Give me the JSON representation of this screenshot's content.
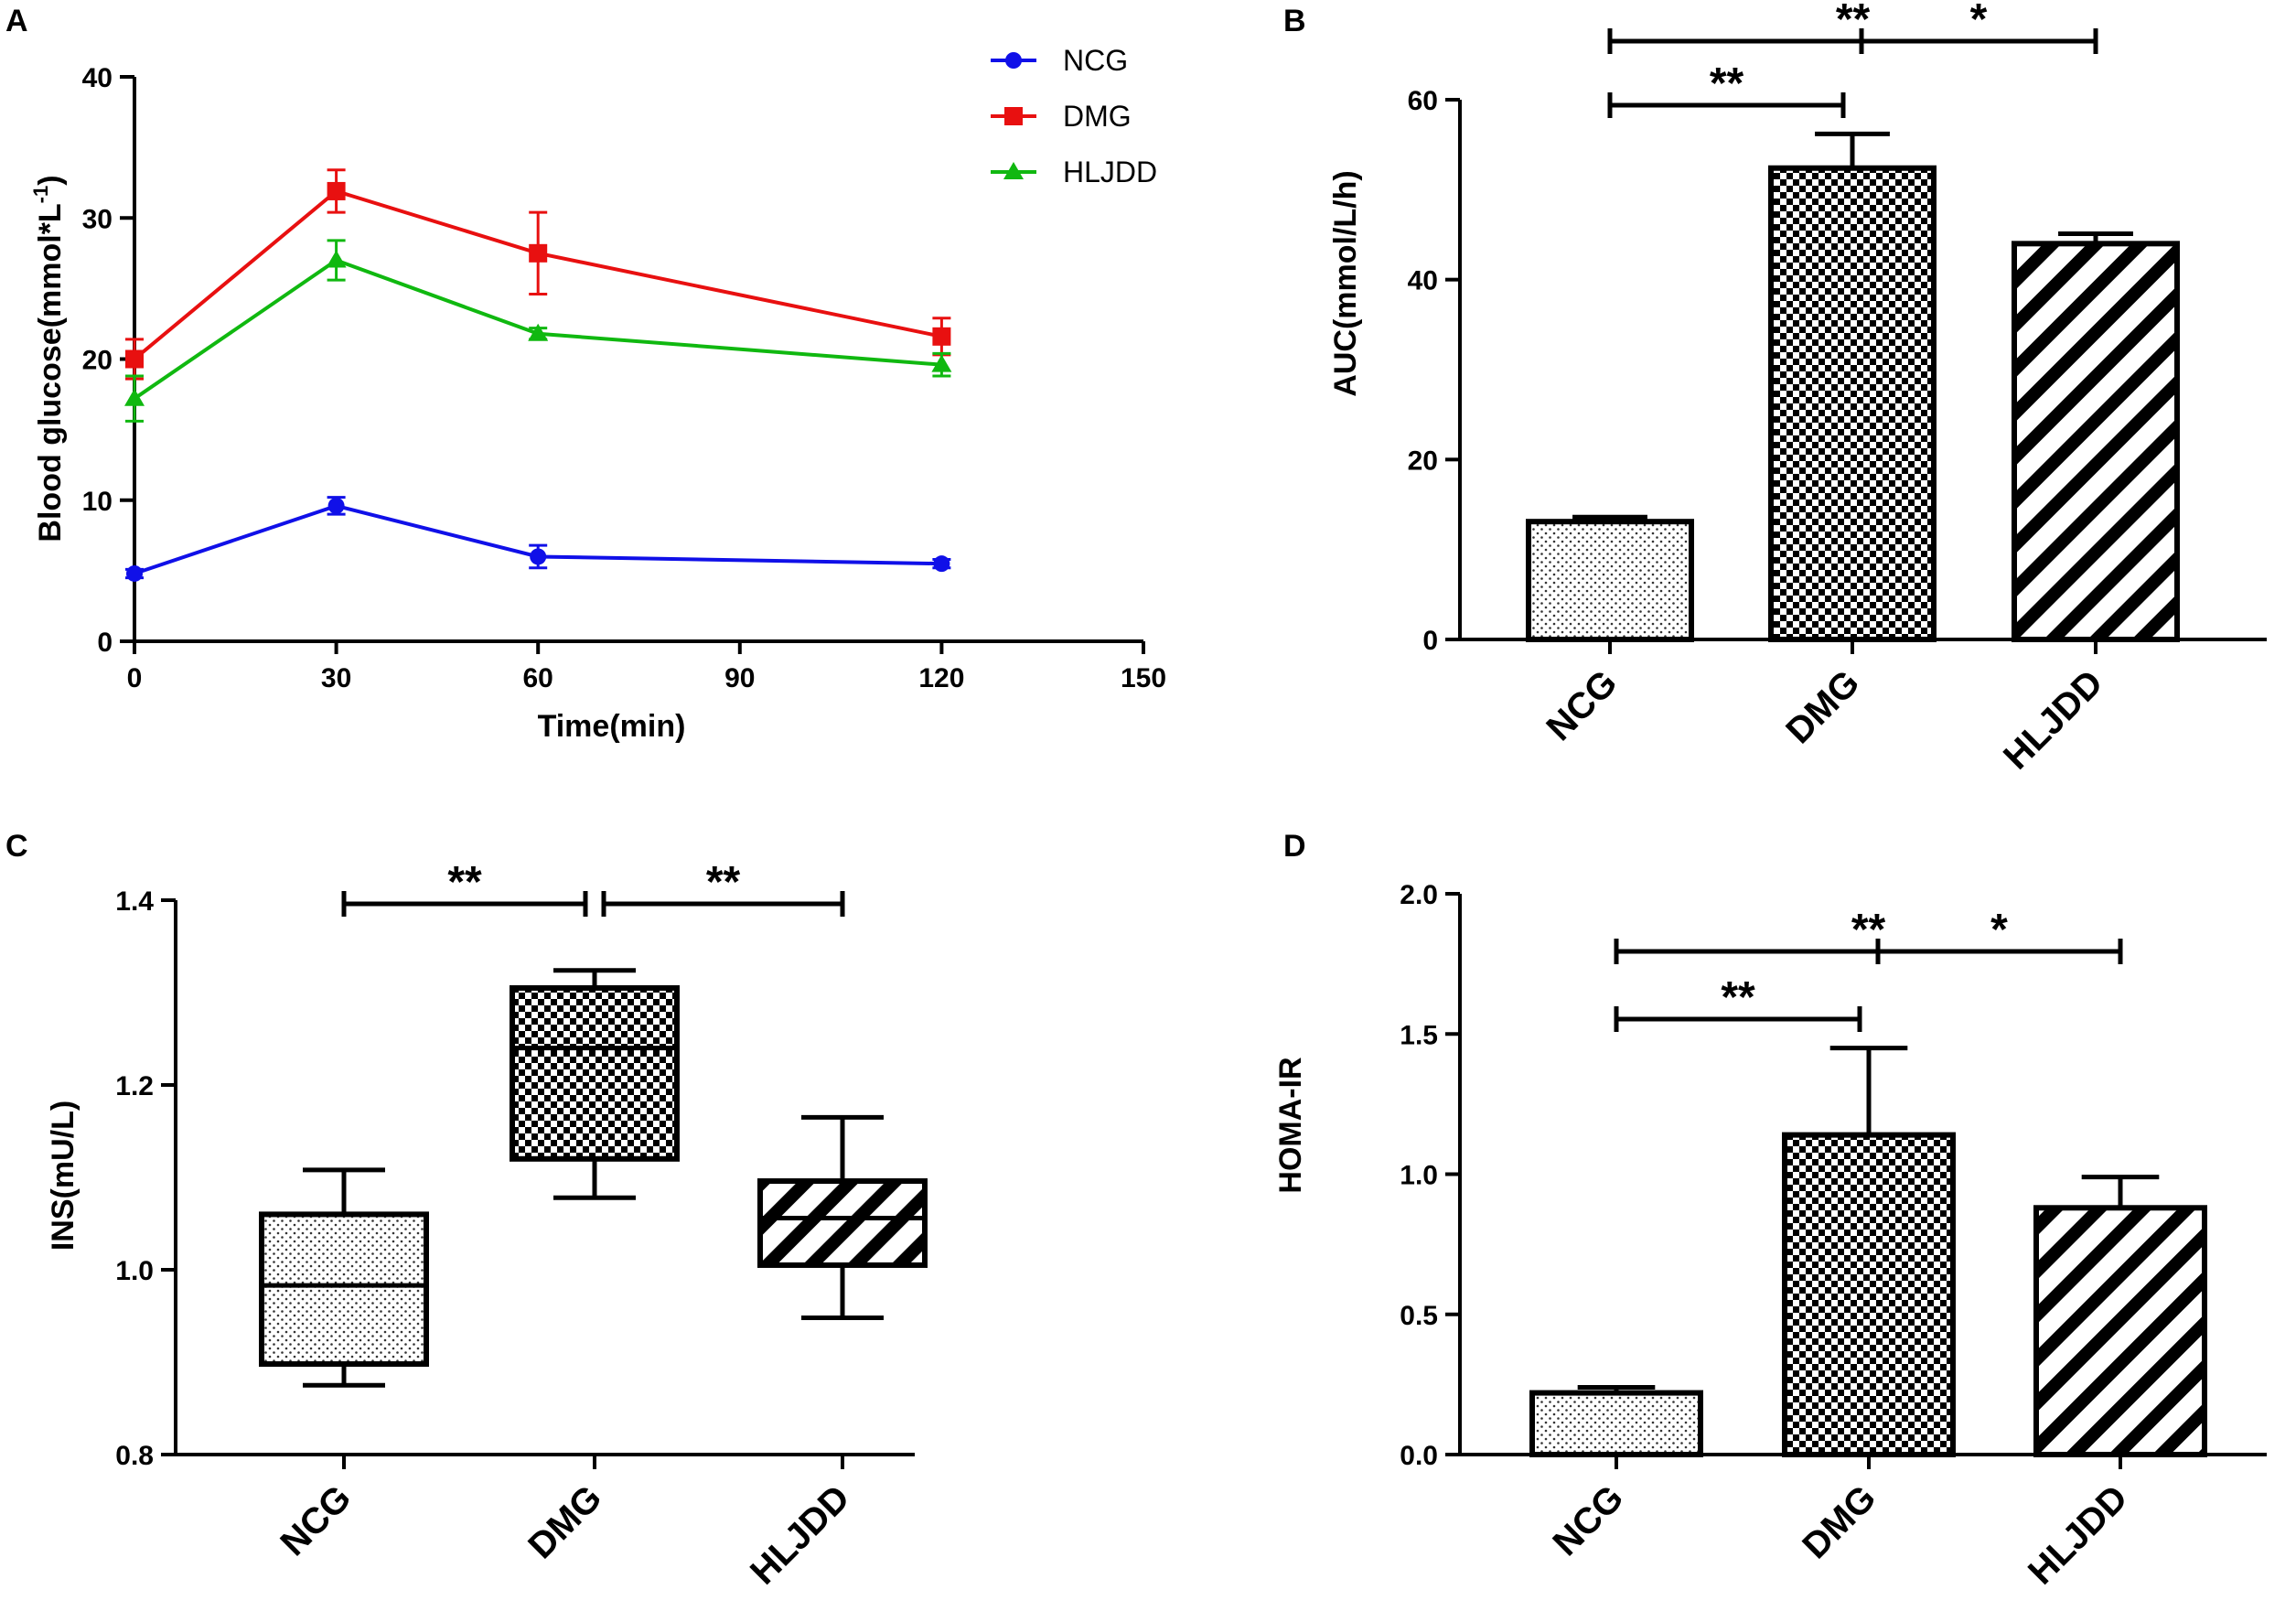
{
  "chart_data": [
    {
      "panel": "A",
      "type": "line",
      "xlabel": "Time(min)",
      "ylabel": "Blood glucose(mmol*L-1)",
      "ylabel_main": "Blood glucose(mmol*L",
      "ylabel_sup": "-1",
      "ylabel_tail": ")",
      "xlim": [
        0,
        150
      ],
      "ylim": [
        0,
        40
      ],
      "xticks": [
        0,
        30,
        60,
        90,
        120,
        150
      ],
      "yticks": [
        0,
        10,
        20,
        30,
        40
      ],
      "x": [
        0,
        30,
        60,
        120
      ],
      "legend": "top-right",
      "series": [
        {
          "name": "NCG",
          "color": "#1010e8",
          "marker": "circle",
          "values": [
            4.8,
            9.6,
            6.0,
            5.5
          ],
          "errors": [
            0.3,
            0.6,
            0.8,
            0.3
          ]
        },
        {
          "name": "DMG",
          "color": "#e81010",
          "marker": "square",
          "values": [
            20.0,
            31.9,
            27.5,
            21.6
          ],
          "errors": [
            1.4,
            1.5,
            2.9,
            1.3
          ]
        },
        {
          "name": "HLJDD",
          "color": "#10b810",
          "marker": "triangle",
          "values": [
            17.2,
            27.0,
            21.8,
            19.6
          ],
          "errors": [
            1.6,
            1.4,
            0.4,
            0.8
          ]
        }
      ]
    },
    {
      "panel": "B",
      "type": "bar",
      "ylabel": "AUC(mmol/L/h)",
      "ylim": [
        0,
        60
      ],
      "yticks": [
        0,
        20,
        40,
        60
      ],
      "categories": [
        "NCG",
        "DMG",
        "HLJDD"
      ],
      "values": [
        13.1,
        52.4,
        44.0
      ],
      "errors": [
        0.5,
        3.8,
        1.1
      ],
      "patterns": [
        "dots",
        "checker",
        "diag"
      ],
      "significance": [
        {
          "from": 0,
          "to": 1,
          "label": "**"
        },
        {
          "from": 1,
          "to": 2,
          "label": "*"
        },
        {
          "from": 0,
          "to": 2,
          "label": "**"
        }
      ]
    },
    {
      "panel": "C",
      "type": "box",
      "ylabel": "INS(mU/L)",
      "ylim": [
        0.8,
        1.4
      ],
      "yticks": [
        "0.8",
        "1.0",
        "1.2",
        "1.4"
      ],
      "categories": [
        "NCG",
        "DMG",
        "HLJDD"
      ],
      "boxes": [
        {
          "min": 0.875,
          "q1": 0.898,
          "median": 0.983,
          "q3": 1.06,
          "max": 1.108
        },
        {
          "min": 1.078,
          "q1": 1.12,
          "median": 1.24,
          "q3": 1.305,
          "max": 1.324
        },
        {
          "min": 0.948,
          "q1": 1.005,
          "median": 1.056,
          "q3": 1.096,
          "max": 1.165
        }
      ],
      "patterns": [
        "dots",
        "checker",
        "diag"
      ],
      "significance": [
        {
          "from": 0,
          "to": 1,
          "label": "**"
        },
        {
          "from": 1,
          "to": 2,
          "label": "**"
        }
      ]
    },
    {
      "panel": "D",
      "type": "bar",
      "ylabel": "HOMA-IR",
      "ylim": [
        0,
        2.0
      ],
      "yticks": [
        "0.0",
        "0.5",
        "1.0",
        "1.5",
        "2.0"
      ],
      "categories": [
        "NCG",
        "DMG",
        "HLJDD"
      ],
      "values": [
        0.22,
        1.14,
        0.88
      ],
      "errors": [
        0.02,
        0.31,
        0.11
      ],
      "patterns": [
        "dots",
        "checker",
        "diag"
      ],
      "significance": [
        {
          "from": 0,
          "to": 1,
          "label": "**"
        },
        {
          "from": 1,
          "to": 2,
          "label": "*"
        },
        {
          "from": 0,
          "to": 2,
          "label": "**"
        }
      ]
    }
  ]
}
